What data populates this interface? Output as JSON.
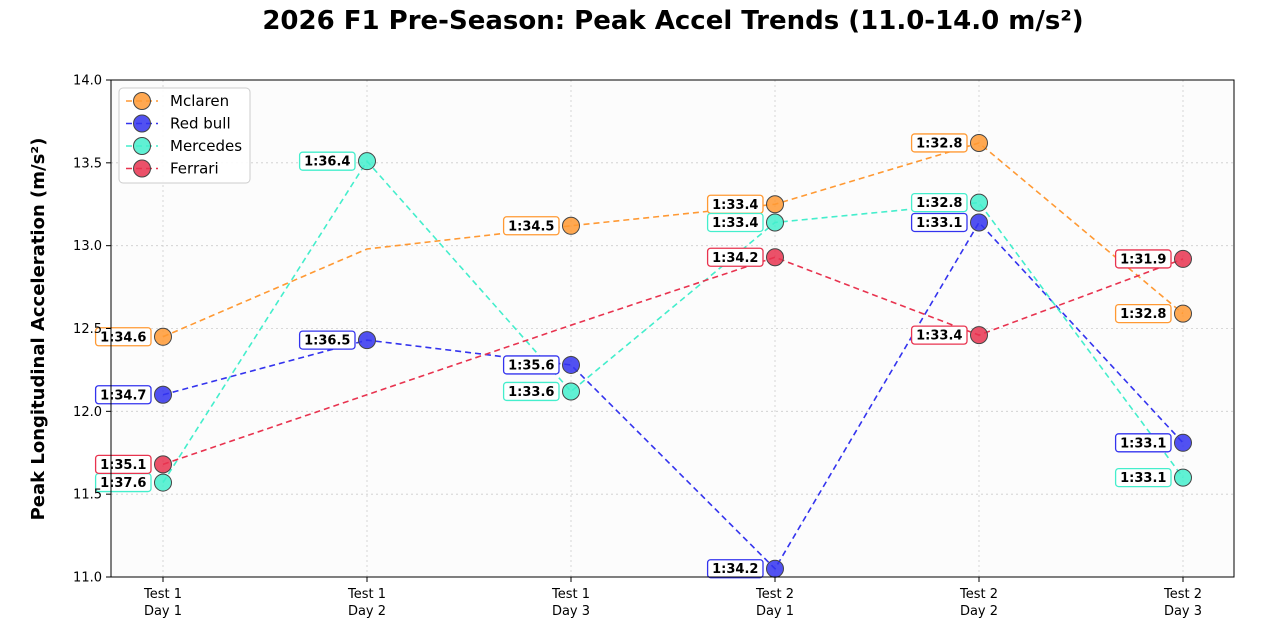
{
  "chart_data": {
    "type": "line",
    "title": "2026 F1 Pre-Season: Peak Accel Trends (11.0-14.0 m/s²)",
    "xlabel": "",
    "ylabel": "Peak Longitudinal Acceleration (m/s²)",
    "categories": [
      [
        "Test 1",
        "Day 1"
      ],
      [
        "Test 1",
        "Day 2"
      ],
      [
        "Test 1",
        "Day 3"
      ],
      [
        "Test 2",
        "Day 1"
      ],
      [
        "Test 2",
        "Day 2"
      ],
      [
        "Test 2",
        "Day 3"
      ]
    ],
    "ylim": [
      11.0,
      14.0
    ],
    "yticks": [
      "11.0",
      "11.5",
      "12.0",
      "12.5",
      "13.0",
      "13.5",
      "14.0"
    ],
    "grid": true,
    "legend_position": "top-left",
    "series": [
      {
        "name": "Mclaren",
        "color": "#ff9933",
        "values": [
          12.45,
          12.98,
          13.12,
          13.25,
          13.62,
          12.59
        ],
        "labels": [
          "1:34.6",
          "",
          "1:34.5",
          "1:33.4",
          "1:32.8",
          "1:32.8"
        ],
        "label_side": [
          "left",
          "left",
          "left",
          "left",
          "left",
          "left"
        ]
      },
      {
        "name": "Red bull",
        "color": "#3333ee",
        "values": [
          12.1,
          12.43,
          12.28,
          11.05,
          13.14,
          11.81
        ],
        "labels": [
          "1:34.7",
          "1:36.5",
          "1:35.6",
          "1:34.2",
          "1:33.1",
          "1:33.1"
        ],
        "label_side": [
          "left",
          "left",
          "left",
          "left",
          "left",
          "left"
        ]
      },
      {
        "name": "Mercedes",
        "color": "#44eecc",
        "values": [
          11.57,
          13.51,
          12.12,
          13.14,
          13.26,
          11.6
        ],
        "labels": [
          "1:37.6",
          "1:36.4",
          "1:33.6",
          "1:33.4",
          "1:32.8",
          "1:33.1"
        ],
        "label_side": [
          "left",
          "left",
          "left",
          "left",
          "left",
          "left"
        ]
      },
      {
        "name": "Ferrari",
        "color": "#e8334f",
        "values": [
          11.68,
          12.1,
          12.52,
          12.93,
          12.46,
          12.92
        ],
        "labels": [
          "1:35.1",
          "",
          "",
          "1:34.2",
          "1:33.4",
          "1:31.9"
        ],
        "label_side": [
          "left",
          "left",
          "left",
          "left",
          "left",
          "left"
        ]
      }
    ],
    "point_series": [
      {
        "name": "Mclaren",
        "points": [
          0,
          2,
          3,
          4,
          5
        ]
      },
      {
        "name": "Red bull",
        "points": [
          0,
          1,
          2,
          3,
          4,
          5
        ]
      },
      {
        "name": "Mercedes",
        "points": [
          0,
          1,
          2,
          3,
          4,
          5
        ]
      },
      {
        "name": "Ferrari",
        "points": [
          0,
          3,
          4,
          5
        ]
      }
    ]
  }
}
